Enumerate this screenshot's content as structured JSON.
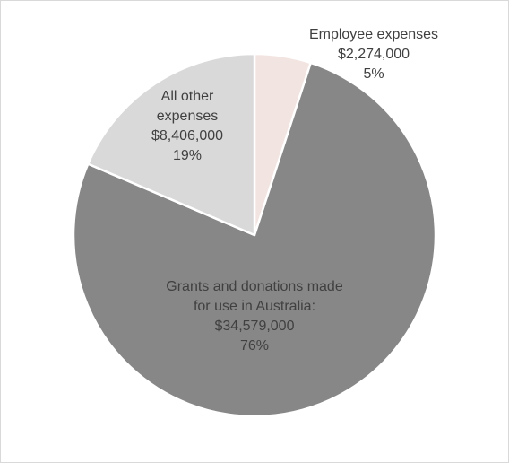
{
  "chart_data": {
    "type": "pie",
    "title": "",
    "slices": [
      {
        "label_lines": [
          "Employee expenses",
          "$2,274,000",
          "5%"
        ],
        "value": 2274000,
        "percent": 5,
        "color": "#f2e4e0"
      },
      {
        "label_lines": [
          "Grants and donations made",
          "for use in Australia:",
          "$34,579,000",
          "76%"
        ],
        "value": 34579000,
        "percent": 76,
        "color": "#878787"
      },
      {
        "label_lines": [
          "All other",
          "expenses",
          "$8,406,000",
          "19%"
        ],
        "value": 8406000,
        "percent": 19,
        "color": "#d9d9d9"
      }
    ],
    "start_angle_deg": 0,
    "direction": "clockwise",
    "slice_border_color": "#ffffff",
    "legend": "none"
  }
}
